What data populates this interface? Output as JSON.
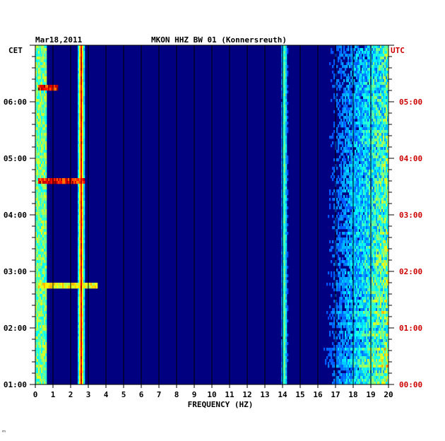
{
  "header": {
    "date": "Mar18,2011",
    "station": "MKON HHZ BW 01 (Konnersreuth)"
  },
  "left_tz": "CET",
  "right_tz": "UTC",
  "footer_mark": "ᵐ",
  "colors": {
    "background": "#000080",
    "left_axis_text": "#000000",
    "right_axis_text": "#cc0000",
    "grid": "#000000"
  },
  "chart_data": {
    "type": "heatmap",
    "title": "MKON HHZ BW 01 (Konnersreuth)",
    "xlabel": "FREQUENCY (HZ)",
    "xlim": [
      0,
      20
    ],
    "x_ticks": [
      "0",
      "1",
      "2",
      "3",
      "4",
      "5",
      "6",
      "7",
      "8",
      "9",
      "10",
      "11",
      "12",
      "13",
      "14",
      "15",
      "16",
      "17",
      "18",
      "19",
      "20"
    ],
    "left_ticks": [
      "06:00",
      "05:00",
      "04:00",
      "03:00",
      "02:00",
      "01:00"
    ],
    "right_ticks": [
      "05:00",
      "04:00",
      "03:00",
      "02:00",
      "01:00",
      "00:00"
    ],
    "time_range_utc": [
      "00:00",
      "06:00"
    ],
    "colormap": "jet",
    "features": [
      {
        "kind": "persistent_line",
        "freq_hz": 2.6,
        "intensity": 0.85
      },
      {
        "kind": "persistent_line",
        "freq_hz": 14.1,
        "intensity": 0.45
      },
      {
        "kind": "low_freq_band",
        "freq_range_hz": [
          0,
          0.6
        ],
        "intensity": 0.6
      },
      {
        "kind": "transient",
        "time_utc": "05:16",
        "freq_range_hz": [
          0.2,
          1.3
        ],
        "intensity": 1.0
      },
      {
        "kind": "transient",
        "time_utc": "03:36",
        "freq_range_hz": [
          0.2,
          2.8
        ],
        "intensity": 1.0
      },
      {
        "kind": "transient",
        "time_utc": "01:46",
        "freq_range_hz": [
          0.2,
          3.5
        ],
        "intensity": 0.7
      },
      {
        "kind": "high_freq_noise",
        "freq_range_hz": [
          15,
          20
        ],
        "intensity": 0.7
      }
    ]
  }
}
